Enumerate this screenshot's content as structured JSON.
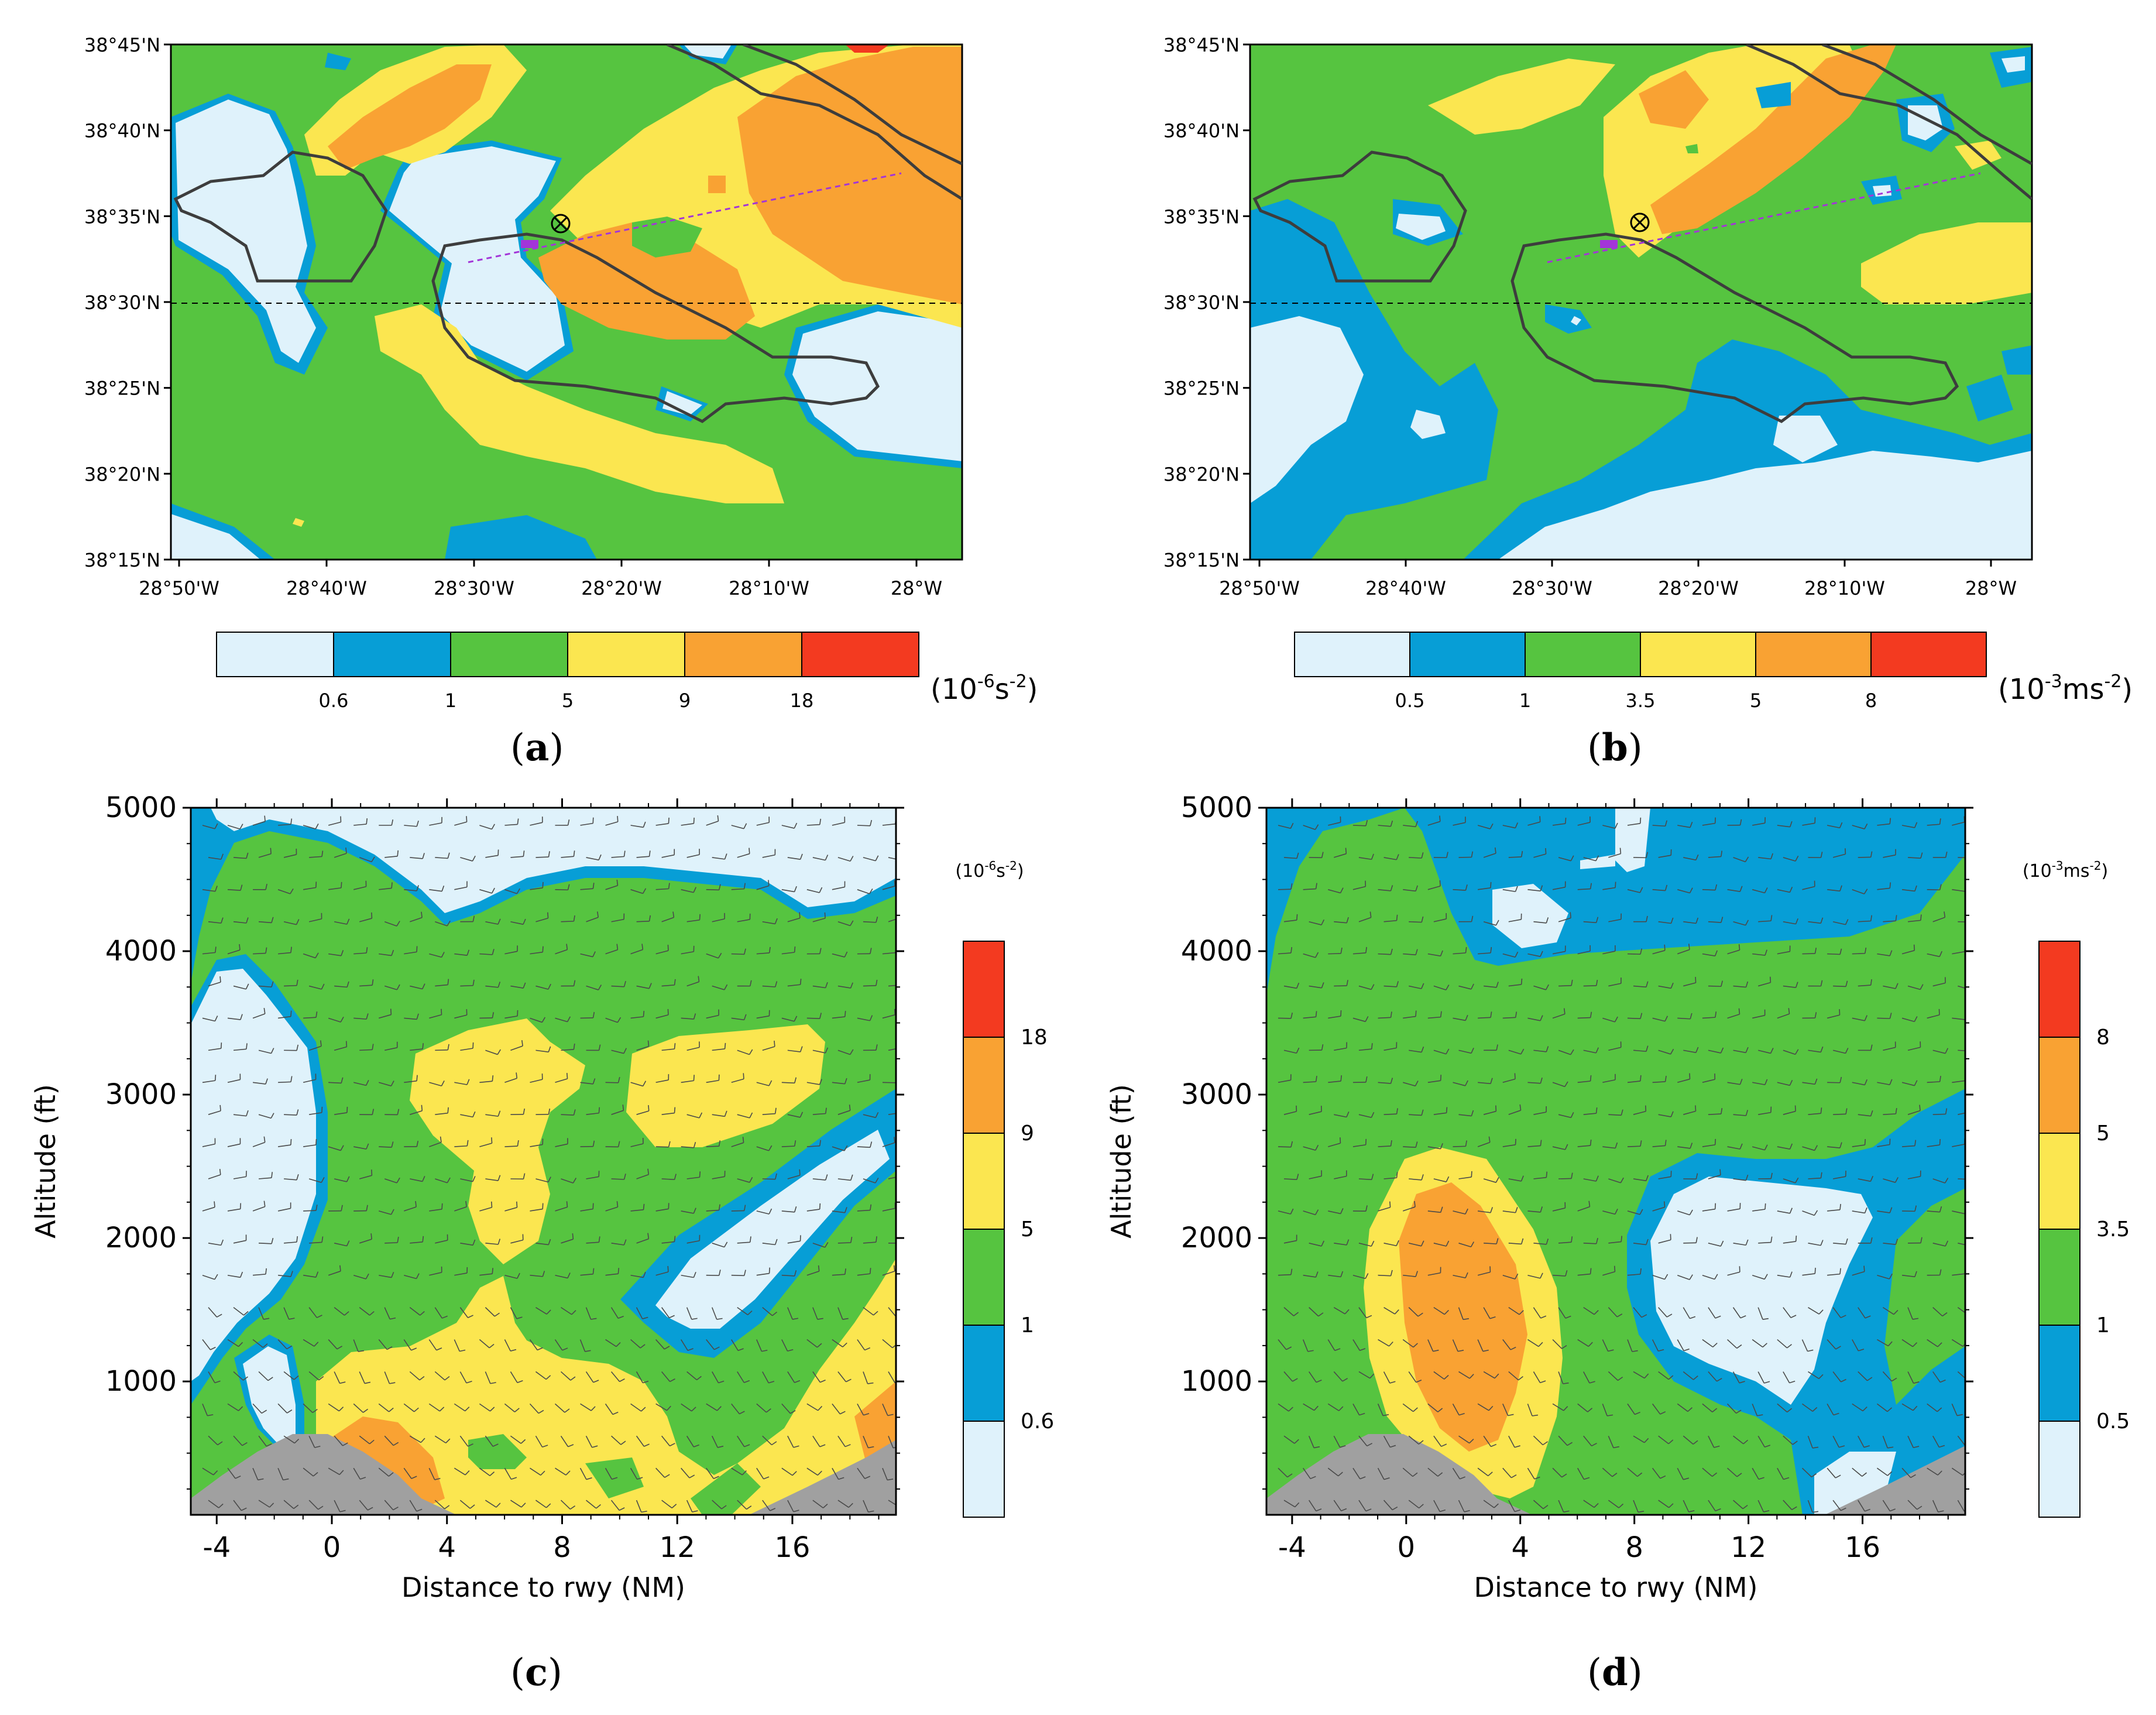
{
  "panels": [
    {
      "label": "a"
    },
    {
      "label": "b"
    },
    {
      "label": "c"
    },
    {
      "label": "d"
    }
  ],
  "chart_data": [
    {
      "type": "heatmap",
      "panel": "a",
      "x_ticks": [
        "28°50'W",
        "28°40'W",
        "28°30'W",
        "28°20'W",
        "28°10'W",
        "28°W"
      ],
      "y_ticks": [
        "38°45'N",
        "38°40'N",
        "38°35'N",
        "38°30'N",
        "38°25'N",
        "38°20'N",
        "38°15'N"
      ],
      "colorbar_levels": [
        "0.6",
        "1",
        "5",
        "9",
        "18"
      ],
      "colorbar_unit_base": "(10",
      "colorbar_unit_exp": "-6",
      "colorbar_unit_tail": "s",
      "colorbar_unit_exp2": "-2",
      "colorbar_unit_end": ")",
      "colors": [
        "#dff2fb",
        "#079ed6",
        "#56c440",
        "#fbe650",
        "#f9a233",
        "#f33a20"
      ]
    },
    {
      "type": "heatmap",
      "panel": "b",
      "x_ticks": [
        "28°50'W",
        "28°40'W",
        "28°30'W",
        "28°20'W",
        "28°10'W",
        "28°W"
      ],
      "y_ticks": [
        "38°45'N",
        "38°40'N",
        "38°35'N",
        "38°30'N",
        "38°25'N",
        "38°20'N",
        "38°15'N"
      ],
      "colorbar_levels": [
        "0.5",
        "1",
        "3.5",
        "5",
        "8"
      ],
      "colorbar_unit_base": "(10",
      "colorbar_unit_exp": "-3",
      "colorbar_unit_tail": "ms",
      "colorbar_unit_exp2": "-2",
      "colorbar_unit_end": ")",
      "colors": [
        "#dff2fb",
        "#079ed6",
        "#56c440",
        "#fbe650",
        "#f9a233",
        "#f33a20"
      ]
    },
    {
      "type": "heatmap",
      "panel": "c",
      "xlabel": "Distance to rwy (NM)",
      "ylabel": "Altitude (ft)",
      "x_ticks": [
        -4,
        0,
        4,
        8,
        12,
        16
      ],
      "y_ticks": [
        1000,
        2000,
        3000,
        4000,
        5000
      ],
      "xlim": [
        -4.9,
        19.6
      ],
      "ylim": [
        70,
        5000
      ],
      "colorbar_levels": [
        "0.6",
        "1",
        "5",
        "9",
        "18"
      ],
      "colorbar_unit_base": "(10",
      "colorbar_unit_exp": "-6",
      "colorbar_unit_tail": "s",
      "colorbar_unit_exp2": "-2",
      "colorbar_unit_end": ")",
      "colors": [
        "#dff2fb",
        "#079ed6",
        "#56c440",
        "#fbe650",
        "#f9a233",
        "#f33a20"
      ],
      "terrain_color": "#a0a0a0"
    },
    {
      "type": "heatmap",
      "panel": "d",
      "xlabel": "Distance to rwy (NM)",
      "ylabel": "Altitude (ft)",
      "x_ticks": [
        -4,
        0,
        4,
        8,
        12,
        16
      ],
      "y_ticks": [
        1000,
        2000,
        3000,
        4000,
        5000
      ],
      "xlim": [
        -4.9,
        19.6
      ],
      "ylim": [
        70,
        5000
      ],
      "colorbar_levels": [
        "0.5",
        "1",
        "3.5",
        "5",
        "8"
      ],
      "colorbar_unit_base": "(10",
      "colorbar_unit_exp": "-3",
      "colorbar_unit_tail": "ms",
      "colorbar_unit_exp2": "-2",
      "colorbar_unit_end": ")",
      "colors": [
        "#dff2fb",
        "#079ed6",
        "#56c440",
        "#fbe650",
        "#f9a233",
        "#f33a20"
      ],
      "terrain_color": "#a0a0a0"
    }
  ]
}
